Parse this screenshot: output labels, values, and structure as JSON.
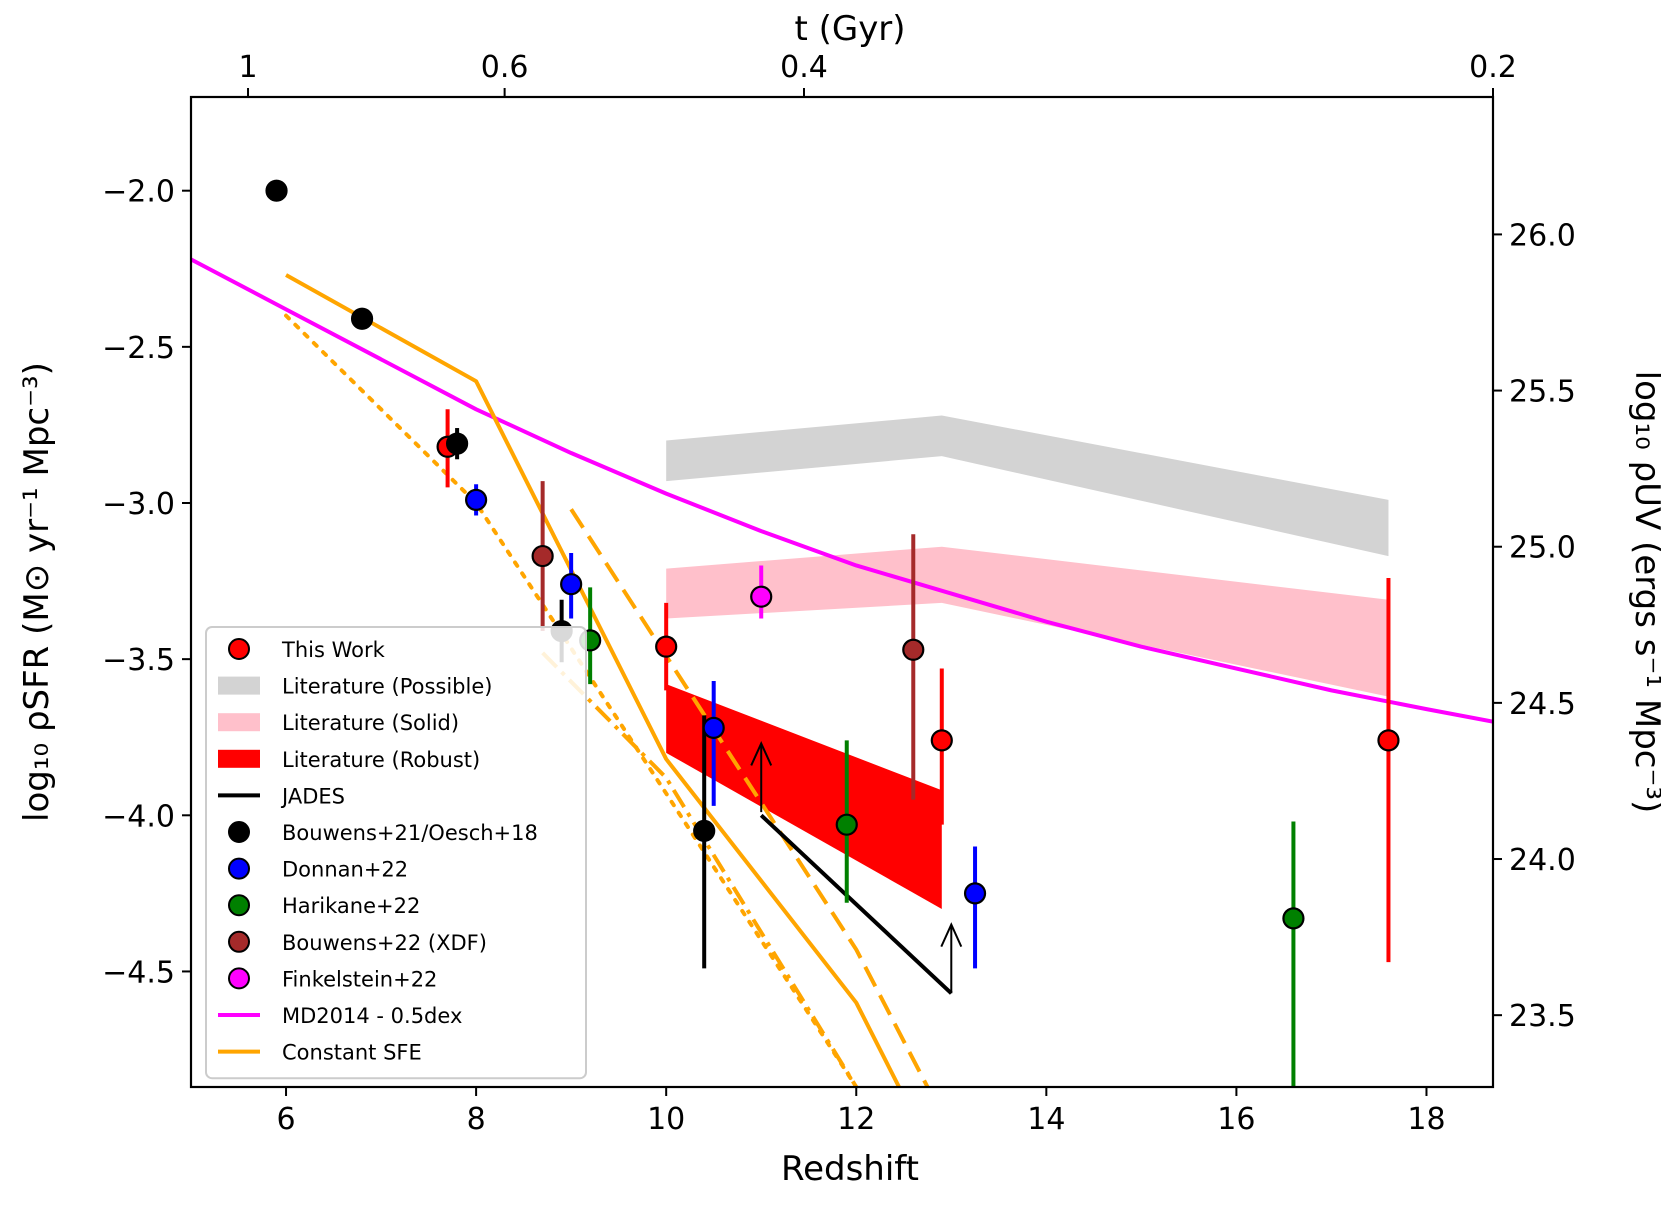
{
  "chart_data": {
    "type": "scatter",
    "xlabel": "Redshift",
    "ylabel_left": "log₁₀ ρSFR (M⊙ yr⁻¹ Mpc⁻³)",
    "ylabel_right": "log₁₀ ρUV (ergs s⁻¹ Mpc⁻³)",
    "xlabel_top": "t (Gyr)",
    "xlim": [
      5.0,
      18.7
    ],
    "ylim": [
      -4.87,
      -1.7
    ],
    "right_ylim": [
      23.27,
      26.44
    ],
    "x_ticks": [
      6,
      8,
      10,
      12,
      14,
      16,
      18
    ],
    "y_ticks": [
      -2.0,
      -2.5,
      -3.0,
      -3.5,
      -4.0,
      -4.5
    ],
    "y_tick_labels": [
      "−2.0",
      "−2.5",
      "−3.0",
      "−3.5",
      "−4.0",
      "−4.5"
    ],
    "right_ticks": [
      23.5,
      24.0,
      24.5,
      25.0,
      25.5,
      26.0
    ],
    "right_tick_labels": [
      "23.5",
      "24.0",
      "24.5",
      "25.0",
      "25.5",
      "26.0"
    ],
    "top_ticks": [
      {
        "label": "1",
        "z": 5.6
      },
      {
        "label": "0.6",
        "z": 8.3
      },
      {
        "label": "0.4",
        "z": 11.45
      },
      {
        "label": "0.2",
        "z": 18.7
      }
    ],
    "legend_position": "lower-left",
    "legend": [
      {
        "label": "This Work",
        "kind": "marker",
        "color": "#ff0000"
      },
      {
        "label": "Literature (Possible)",
        "kind": "patch",
        "color": "#d3d3d3"
      },
      {
        "label": "Literature (Solid)",
        "kind": "patch",
        "color": "#ffc0cb"
      },
      {
        "label": "Literature (Robust)",
        "kind": "patch",
        "color": "#ff0000"
      },
      {
        "label": "JADES",
        "kind": "line",
        "color": "#000000"
      },
      {
        "label": "Bouwens+21/Oesch+18",
        "kind": "marker",
        "color": "#000000"
      },
      {
        "label": "Donnan+22",
        "kind": "marker",
        "color": "#0000ff"
      },
      {
        "label": "Harikane+22",
        "kind": "marker",
        "color": "#008000"
      },
      {
        "label": "Bouwens+22 (XDF)",
        "kind": "marker",
        "color": "#a52a2a"
      },
      {
        "label": "Finkelstein+22",
        "kind": "marker",
        "color": "#ff00ff"
      },
      {
        "label": "MD2014 - 0.5dex",
        "kind": "line",
        "color": "#ff00ff"
      },
      {
        "label": "Constant SFE",
        "kind": "line",
        "color": "#ffa500"
      }
    ],
    "bands": [
      {
        "name": "Literature (Possible)",
        "color": "#d3d3d3",
        "x": [
          10.0,
          12.9,
          17.6
        ],
        "lower": [
          -2.93,
          -2.85,
          -3.17
        ],
        "upper": [
          -2.8,
          -2.72,
          -2.99
        ]
      },
      {
        "name": "Literature (Solid)",
        "color": "#ffc0cb",
        "x": [
          10.0,
          12.9,
          17.6
        ],
        "lower": [
          -3.37,
          -3.32,
          -3.62
        ],
        "upper": [
          -3.21,
          -3.14,
          -3.31
        ]
      },
      {
        "name": "Literature (Robust)",
        "color": "#ff0000",
        "x": [
          10.0,
          12.9
        ],
        "lower": [
          -3.8,
          -4.3
        ],
        "upper": [
          -3.58,
          -3.92
        ]
      }
    ],
    "lines": [
      {
        "name": "MD2014 - 0.5dex",
        "color": "#ff00ff",
        "style": "solid",
        "x": [
          5.0,
          6.0,
          7.0,
          8.0,
          9.0,
          10.0,
          11.0,
          12.0,
          13.0,
          14.0,
          15.0,
          16.0,
          17.0,
          18.0,
          18.7
        ],
        "y": [
          -2.22,
          -2.38,
          -2.54,
          -2.7,
          -2.84,
          -2.97,
          -3.09,
          -3.2,
          -3.29,
          -3.38,
          -3.46,
          -3.53,
          -3.6,
          -3.66,
          -3.7
        ]
      },
      {
        "name": "Constant SFE",
        "color": "#ffa500",
        "style": "solid",
        "x": [
          6.0,
          8.0,
          10.0,
          12.0,
          13.0
        ],
        "y": [
          -2.27,
          -2.61,
          -3.82,
          -4.6,
          -5.2
        ]
      },
      {
        "name": "Constant SFE (dashed)",
        "color": "#ffa500",
        "style": "dashed",
        "x": [
          9.0,
          12.0,
          12.75
        ],
        "y": [
          -3.02,
          -4.43,
          -4.87
        ]
      },
      {
        "name": "Constant SFE (dash-dot)",
        "color": "#ffa500",
        "style": "dashdot",
        "x": [
          8.7,
          10.0,
          12.0
        ],
        "y": [
          -3.48,
          -3.88,
          -4.87
        ]
      },
      {
        "name": "Constant SFE (dotted)",
        "color": "#ffa500",
        "style": "dotted",
        "x": [
          6.0,
          8.0,
          10.0,
          12.0
        ],
        "y": [
          -2.4,
          -3.0,
          -3.93,
          -4.87
        ]
      },
      {
        "name": "JADES",
        "color": "#000000",
        "style": "solid",
        "x": [
          11.0,
          13.0
        ],
        "y": [
          -4.0,
          -4.57
        ]
      }
    ],
    "arrows": [
      {
        "name": "JADES lower limit z11",
        "x": 11.0,
        "y_from": -3.99,
        "y_to": -3.77
      },
      {
        "name": "JADES lower limit z13",
        "x": 13.0,
        "y_from": -4.57,
        "y_to": -4.35
      }
    ],
    "series": [
      {
        "name": "This Work",
        "color": "#ff0000",
        "points": [
          {
            "x": 7.7,
            "y": -2.82,
            "lo": -2.95,
            "hi": -2.7
          },
          {
            "x": 10.0,
            "y": -3.46,
            "lo": -3.6,
            "hi": -3.32
          },
          {
            "x": 12.9,
            "y": -3.76,
            "lo": -4.03,
            "hi": -3.53
          },
          {
            "x": 17.6,
            "y": -3.76,
            "lo": -4.47,
            "hi": -3.24
          }
        ]
      },
      {
        "name": "Bouwens+21/Oesch+18",
        "color": "#000000",
        "points": [
          {
            "x": 5.9,
            "y": -2.0,
            "lo": -2.0,
            "hi": -2.0
          },
          {
            "x": 6.8,
            "y": -2.41,
            "lo": -2.43,
            "hi": -2.39
          },
          {
            "x": 7.8,
            "y": -2.81,
            "lo": -2.86,
            "hi": -2.76
          },
          {
            "x": 8.9,
            "y": -3.41,
            "lo": -3.51,
            "hi": -3.31
          },
          {
            "x": 10.4,
            "y": -4.05,
            "lo": -4.49,
            "hi": -3.68
          }
        ]
      },
      {
        "name": "Donnan+22",
        "color": "#0000ff",
        "points": [
          {
            "x": 8.0,
            "y": -2.99,
            "lo": -3.04,
            "hi": -2.94
          },
          {
            "x": 9.0,
            "y": -3.26,
            "lo": -3.37,
            "hi": -3.16
          },
          {
            "x": 10.5,
            "y": -3.72,
            "lo": -3.97,
            "hi": -3.57
          },
          {
            "x": 13.25,
            "y": -4.25,
            "lo": -4.49,
            "hi": -4.1
          }
        ]
      },
      {
        "name": "Harikane+22",
        "color": "#008000",
        "points": [
          {
            "x": 9.2,
            "y": -3.44,
            "lo": -3.58,
            "hi": -3.27
          },
          {
            "x": 11.9,
            "y": -4.03,
            "lo": -4.28,
            "hi": -3.76
          },
          {
            "x": 16.6,
            "y": -4.33,
            "lo": -4.87,
            "hi": -4.02
          }
        ]
      },
      {
        "name": "Bouwens+22 (XDF)",
        "color": "#a52a2a",
        "points": [
          {
            "x": 8.7,
            "y": -3.17,
            "lo": -3.41,
            "hi": -2.93
          },
          {
            "x": 12.6,
            "y": -3.47,
            "lo": -3.95,
            "hi": -3.1
          }
        ]
      },
      {
        "name": "Finkelstein+22",
        "color": "#ff00ff",
        "points": [
          {
            "x": 11.0,
            "y": -3.3,
            "lo": -3.37,
            "hi": -3.2
          }
        ]
      }
    ]
  }
}
